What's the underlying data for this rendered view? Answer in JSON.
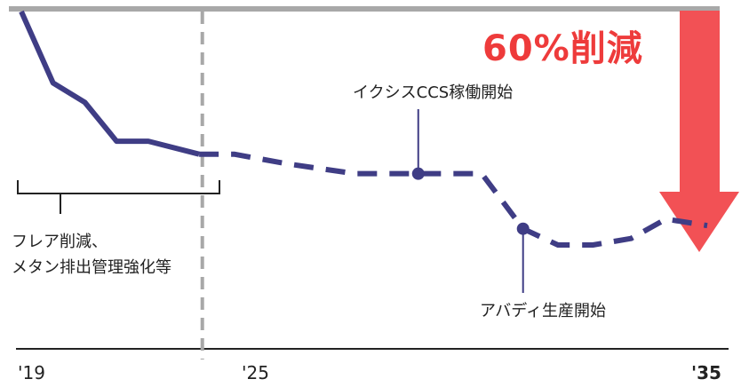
{
  "chart_data": {
    "type": "line",
    "title": "",
    "xlabel": "",
    "ylabel": "",
    "tick_labels": [
      "'19",
      "'25",
      "'35"
    ],
    "ylim": [
      0,
      100
    ],
    "series": [
      {
        "style": "actual",
        "x": [
          2019.3,
          2020.3,
          2021.3,
          2022.3,
          2023.3,
          2024.9
        ],
        "values": [
          100,
          78,
          72,
          60,
          60,
          56
        ]
      },
      {
        "style": "forecast",
        "x": [
          2024.9,
          2026.0,
          2027.7,
          2029.8,
          2031.8,
          2033.8,
          2035.1,
          2036.2,
          2037.3,
          2038.5,
          2039.6,
          2040.9
        ],
        "values": [
          56,
          56,
          53,
          50,
          50,
          50,
          33,
          28,
          28,
          30,
          36,
          34
        ]
      }
    ],
    "baseline_year": 2025,
    "reduction_label": "60%削減",
    "annotations": [
      {
        "text": "イクシスCCS稼働開始",
        "x": 2031.8,
        "y": 50
      },
      {
        "text": "アバディ生産開始",
        "x": 2035.1,
        "y": 33
      },
      {
        "text": "フレア削減、",
        "text2": "メタン排出管理強化等"
      }
    ],
    "colors": {
      "line": "#3f3d85",
      "arrow": "#f25155",
      "divider": "#a8a8a8",
      "axis": "#222222"
    }
  }
}
